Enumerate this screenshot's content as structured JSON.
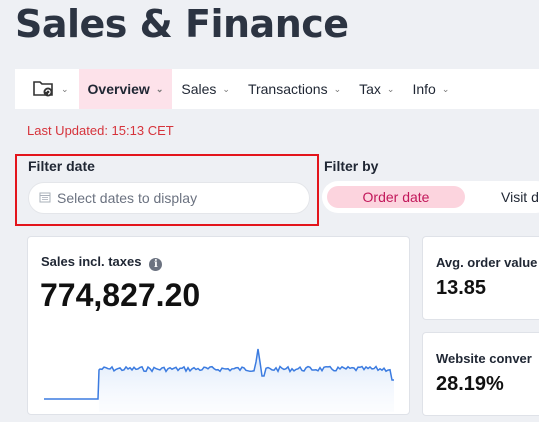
{
  "page": {
    "title": "Sales & Finance"
  },
  "nav": {
    "folder_icon": "folder-refresh-icon",
    "items": [
      {
        "label": "Overview",
        "active": true
      },
      {
        "label": "Sales",
        "active": false
      },
      {
        "label": "Transactions",
        "active": false
      },
      {
        "label": "Tax",
        "active": false
      },
      {
        "label": "Info",
        "active": false
      }
    ]
  },
  "status": {
    "last_updated": "Last Updated: 15:13 CET",
    "color": "#d6333b"
  },
  "filters": {
    "date_label": "Filter date",
    "date_placeholder": "Select dates to display",
    "by_label": "Filter by",
    "by_options": [
      {
        "label": "Order date",
        "active": true
      },
      {
        "label": "Visit d",
        "active": false
      }
    ]
  },
  "cards": {
    "sales": {
      "label": "Sales incl. taxes",
      "value": "774,827.20"
    },
    "avg_order": {
      "label": "Avg. order value",
      "value": "13.85"
    },
    "conversion": {
      "label": "Website conver",
      "value": "28.19%"
    }
  },
  "colors": {
    "accent": "#fde2ea",
    "accent_text": "#c2185b",
    "highlight_border": "#e3141b",
    "sparkline": "#3b7be0"
  }
}
